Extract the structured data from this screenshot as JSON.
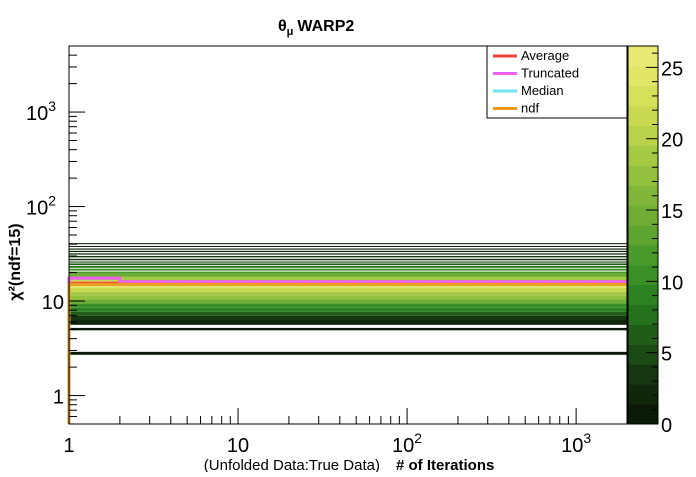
{
  "chart_data": {
    "type": "heatmap",
    "title": "θ",
    "title_sub": "μ",
    "title_suffix": "WARP2",
    "ylabel": "χ²(ndf=15)",
    "xlabel_note": "(Unfolded Data:True Data)",
    "xlabel": "# of Iterations",
    "x_scale": "log",
    "y_scale": "log",
    "xlim": [
      1,
      2000
    ],
    "ylim": [
      0.5,
      5000
    ],
    "x_tick_labels": [
      {
        "v": 1,
        "t": "1"
      },
      {
        "v": 10,
        "t": "10"
      },
      {
        "v": 100,
        "t": "10",
        "e": "2"
      },
      {
        "v": 1000,
        "t": "10",
        "e": "3"
      }
    ],
    "y_tick_labels": [
      {
        "v": 1,
        "t": "1"
      },
      {
        "v": 10,
        "t": "10"
      },
      {
        "v": 100,
        "t": "10",
        "e": "2"
      },
      {
        "v": 1000,
        "t": "10",
        "e": "3"
      }
    ],
    "colorbar": {
      "min": 0,
      "max": 26.5,
      "tick_labels": [
        "0",
        "5",
        "10",
        "15",
        "20",
        "25"
      ],
      "tick_values": [
        0,
        5,
        10,
        15,
        20,
        25
      ],
      "colors": [
        "#0a1a06",
        "#10270b",
        "#153610",
        "#1b4a14",
        "#205e18",
        "#25721c",
        "#2c8221",
        "#3a8f26",
        "#4a9a2b",
        "#5da430",
        "#70ad35",
        "#82b63a",
        "#94c03f",
        "#a6c944",
        "#b8d24a",
        "#c9da51",
        "#d6e15a",
        "#e1e667",
        "#e9ea76"
      ]
    },
    "legend": {
      "placement": "top-right",
      "entries": [
        {
          "label": "Average",
          "color": "#e8403c"
        },
        {
          "label": "Truncated",
          "color": "#f05ff0"
        },
        {
          "label": "Median",
          "color": "#6ee6f0"
        },
        {
          "label": "ndf",
          "color": "#ee9a1f"
        }
      ]
    },
    "series": [
      {
        "name": "Average",
        "x": [
          1,
          2,
          2000
        ],
        "y": [
          15.5,
          15.5,
          15.5
        ]
      },
      {
        "name": "Truncated",
        "x": [
          1,
          1,
          2,
          2,
          2000
        ],
        "y": [
          0.6,
          17.5,
          17.5,
          16.0,
          16.0
        ]
      },
      {
        "name": "Median",
        "x": [
          1,
          2,
          2000
        ],
        "y": [
          15.0,
          15.0,
          15.0
        ]
      },
      {
        "name": "ndf",
        "x": [
          1,
          1,
          2000
        ],
        "y": [
          0.5,
          15,
          15
        ]
      }
    ],
    "heatmap_rows": [
      {
        "y0": 40,
        "y1": 41,
        "value": 1
      },
      {
        "y0": 37.5,
        "y1": 38.3,
        "value": 1
      },
      {
        "y0": 35,
        "y1": 36,
        "value": 2
      },
      {
        "y0": 33,
        "y1": 34,
        "value": 2
      },
      {
        "y0": 31,
        "y1": 32,
        "value": 3
      },
      {
        "y0": 29,
        "y1": 30,
        "value": 3
      },
      {
        "y0": 27,
        "y1": 28,
        "value": 4
      },
      {
        "y0": 25.5,
        "y1": 26.2,
        "value": 5
      },
      {
        "y0": 24,
        "y1": 25,
        "value": 6
      },
      {
        "y0": 22.5,
        "y1": 23.5,
        "value": 8
      },
      {
        "y0": 21,
        "y1": 22,
        "value": 10
      },
      {
        "y0": 19.5,
        "y1": 20.5,
        "value": 12
      },
      {
        "y0": 18,
        "y1": 19.5,
        "value": 15
      },
      {
        "y0": 16.5,
        "y1": 18,
        "value": 19
      },
      {
        "y0": 15,
        "y1": 16.5,
        "value": 25
      },
      {
        "y0": 13.8,
        "y1": 15,
        "value": 24
      },
      {
        "y0": 12.5,
        "y1": 13.8,
        "value": 22
      },
      {
        "y0": 11.4,
        "y1": 12.5,
        "value": 19
      },
      {
        "y0": 10.4,
        "y1": 11.4,
        "value": 17
      },
      {
        "y0": 9.4,
        "y1": 10.4,
        "value": 14
      },
      {
        "y0": 8.5,
        "y1": 9.4,
        "value": 11
      },
      {
        "y0": 7.7,
        "y1": 8.5,
        "value": 9
      },
      {
        "y0": 7.0,
        "y1": 7.7,
        "value": 6
      },
      {
        "y0": 6.3,
        "y1": 7.0,
        "value": 4
      },
      {
        "y0": 5.6,
        "y1": 6.3,
        "value": 2
      },
      {
        "y0": 4.9,
        "y1": 5.2,
        "value": 1
      },
      {
        "y0": 2.7,
        "y1": 2.9,
        "value": 1
      }
    ]
  }
}
